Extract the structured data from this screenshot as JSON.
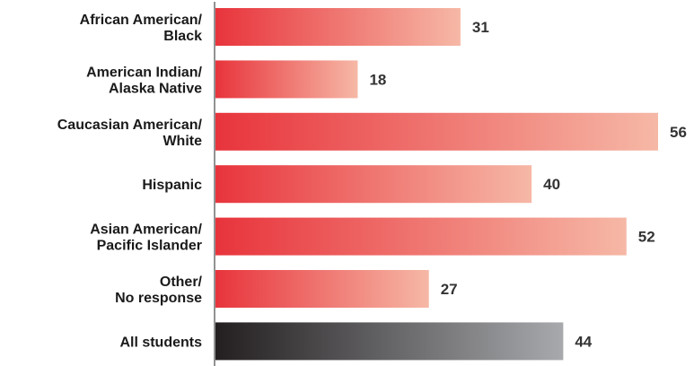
{
  "chart_data": {
    "type": "bar",
    "orientation": "horizontal",
    "title": "",
    "xlabel": "",
    "ylabel": "",
    "categories": [
      [
        "African American/",
        "Black"
      ],
      [
        "American Indian/",
        "Alaska Native"
      ],
      [
        "Caucasian American/",
        "White"
      ],
      [
        "Hispanic"
      ],
      [
        "Asian American/",
        "Pacific Islander"
      ],
      [
        "Other/",
        "No response"
      ],
      [
        "All students"
      ]
    ],
    "values": [
      31,
      18,
      56,
      40,
      52,
      27,
      44
    ],
    "xlim": [
      0,
      56
    ],
    "grid": false,
    "legend": "none",
    "colors": {
      "bar_start": "#e8343c",
      "bar_end": "#f6b8a6",
      "total_start": "#231f20",
      "total_end": "#a7a9ac",
      "axis": "#6d6e71"
    }
  }
}
